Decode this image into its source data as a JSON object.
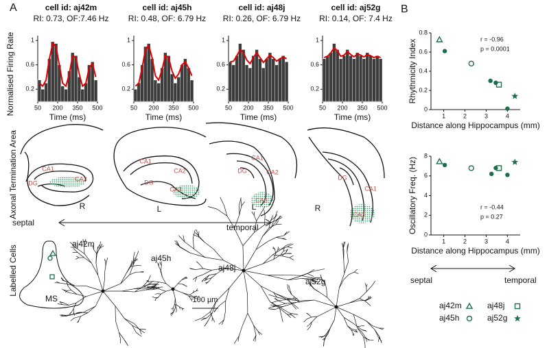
{
  "panel_labels": [
    "A",
    "B"
  ],
  "chart_data": [
    {
      "type": "histogram",
      "title": "cell id: aj42m",
      "subtitle": "RI: 0.73, OF:7.46 Hz",
      "xlabel": "Time (ms)",
      "ylabel": "Normalised Firing Rate",
      "bins": [
        50,
        75,
        100,
        125,
        150,
        175,
        200,
        225,
        250,
        275,
        300,
        325,
        350,
        375,
        400,
        425,
        450,
        475,
        500
      ],
      "values": [
        0.35,
        0.2,
        0.3,
        0.7,
        0.98,
        0.95,
        0.6,
        0.25,
        0.2,
        0.5,
        0.8,
        0.75,
        0.4,
        0.2,
        0.3,
        0.6,
        0.65,
        0.35
      ],
      "color": "#3c3c3c",
      "fit": {
        "x": [
          62.5,
          87.5,
          112.5,
          137.5,
          162.5,
          187.5,
          212.5,
          237.5,
          262.5,
          287.5,
          312.5,
          337.5,
          362.5,
          387.5,
          412.5,
          437.5,
          462.5,
          487.5
        ],
        "values": [
          0.3,
          0.25,
          0.35,
          0.7,
          0.95,
          0.9,
          0.6,
          0.3,
          0.25,
          0.45,
          0.75,
          0.72,
          0.45,
          0.25,
          0.3,
          0.55,
          0.62,
          0.4
        ],
        "color": "#e00000"
      },
      "xlim": [
        50,
        500
      ],
      "xticks": [
        50,
        200,
        350,
        500
      ],
      "ylim": [
        0,
        1.08
      ],
      "yticks": [
        0.2,
        0.6,
        1
      ]
    },
    {
      "type": "histogram",
      "title": "cell id: aj45h",
      "subtitle": "RI: 0.48, OF: 6.79 Hz",
      "xlabel": "Time (ms)",
      "bins": [
        50,
        75,
        100,
        125,
        150,
        175,
        200,
        225,
        250,
        275,
        300,
        325,
        350,
        375,
        400,
        425,
        450,
        475,
        500
      ],
      "values": [
        0.2,
        0.3,
        0.6,
        0.9,
        0.95,
        0.7,
        0.35,
        0.3,
        0.55,
        0.8,
        0.75,
        0.45,
        0.3,
        0.4,
        0.6,
        0.7,
        0.55,
        0.35
      ],
      "color": "#3c3c3c",
      "fit": {
        "x": [
          62.5,
          87.5,
          112.5,
          137.5,
          162.5,
          187.5,
          212.5,
          237.5,
          262.5,
          287.5,
          312.5,
          337.5,
          362.5,
          387.5,
          412.5,
          437.5,
          462.5,
          487.5
        ],
        "values": [
          0.25,
          0.3,
          0.55,
          0.85,
          0.92,
          0.72,
          0.42,
          0.35,
          0.52,
          0.75,
          0.72,
          0.5,
          0.38,
          0.45,
          0.6,
          0.65,
          0.55,
          0.42
        ],
        "color": "#e00000"
      },
      "xlim": [
        50,
        500
      ],
      "xticks": [
        50,
        200,
        350,
        500
      ],
      "ylim": [
        0,
        1.08
      ],
      "yticks": [
        0.2,
        0.6,
        1
      ]
    },
    {
      "type": "histogram",
      "title": "cell id: aj48j",
      "subtitle": "RI: 0.26, OF: 6.79 Hz",
      "xlabel": "Time (ms)",
      "bins": [
        50,
        75,
        100,
        125,
        150,
        175,
        200,
        225,
        250,
        275,
        300,
        325,
        350,
        375,
        400,
        425,
        450,
        475,
        500
      ],
      "values": [
        0.65,
        0.6,
        0.75,
        0.95,
        0.85,
        0.6,
        0.55,
        0.75,
        0.85,
        0.7,
        0.55,
        0.7,
        0.8,
        0.7,
        0.6,
        0.7,
        0.75,
        0.65
      ],
      "color": "#3c3c3c",
      "fit": {
        "x": [
          62.5,
          87.5,
          112.5,
          137.5,
          162.5,
          187.5,
          212.5,
          237.5,
          262.5,
          287.5,
          312.5,
          337.5,
          362.5,
          387.5,
          412.5,
          437.5,
          462.5,
          487.5
        ],
        "values": [
          0.65,
          0.66,
          0.75,
          0.85,
          0.8,
          0.68,
          0.62,
          0.72,
          0.8,
          0.72,
          0.64,
          0.7,
          0.76,
          0.72,
          0.66,
          0.7,
          0.73,
          0.7
        ],
        "color": "#e00000"
      },
      "xlim": [
        50,
        500
      ],
      "xticks": [
        50,
        200,
        350,
        500
      ],
      "ylim": [
        0,
        1.08
      ],
      "yticks": [
        0.2,
        0.6,
        1
      ]
    },
    {
      "type": "histogram",
      "title": "cell id: aj52g",
      "subtitle": "RI: 0.14, OF: 7.4 Hz",
      "xlabel": "Time (ms)",
      "bins": [
        50,
        75,
        100,
        125,
        150,
        175,
        200,
        225,
        250,
        275,
        300,
        325,
        350,
        375,
        400,
        425,
        450,
        475,
        500
      ],
      "values": [
        0.7,
        0.75,
        0.8,
        0.95,
        0.85,
        0.7,
        0.75,
        0.85,
        0.75,
        0.7,
        0.8,
        0.75,
        0.7,
        0.8,
        0.75,
        0.7,
        0.75,
        0.7
      ],
      "color": "#3c3c3c",
      "fit": {
        "x": [
          62.5,
          87.5,
          112.5,
          137.5,
          162.5,
          187.5,
          212.5,
          237.5,
          262.5,
          287.5,
          312.5,
          337.5,
          362.5,
          387.5,
          412.5,
          437.5,
          462.5,
          487.5
        ],
        "values": [
          0.72,
          0.74,
          0.8,
          0.88,
          0.83,
          0.74,
          0.76,
          0.82,
          0.77,
          0.73,
          0.78,
          0.76,
          0.73,
          0.77,
          0.75,
          0.72,
          0.74,
          0.72
        ],
        "color": "#e00000"
      },
      "xlim": [
        50,
        500
      ],
      "xticks": [
        50,
        200,
        350,
        500
      ],
      "ylim": [
        0,
        1.08
      ],
      "yticks": [
        0.2,
        0.6,
        1
      ]
    },
    {
      "type": "scatter",
      "xlabel": "Distance along Hippocampus (mm)",
      "ylabel": "Rhythmicity Index",
      "annotations": [
        "r = -0.96",
        "p = 0.0001"
      ],
      "xlim": [
        0.4,
        4.6
      ],
      "xticks": [
        1,
        2,
        3,
        4
      ],
      "ylim": [
        0,
        0.8
      ],
      "yticks": [
        0,
        0.2,
        0.4,
        0.6,
        0.8
      ],
      "series": [
        {
          "name": "aj42m",
          "marker": "triangle",
          "color": "#1b6e4a",
          "x": [
            0.8
          ],
          "y": [
            0.73
          ]
        },
        {
          "name": "aj45h",
          "marker": "circle",
          "color": "#1b6e4a",
          "x": [
            2.3
          ],
          "y": [
            0.48
          ]
        },
        {
          "name": "aj48j",
          "marker": "square",
          "color": "#1b6e4a",
          "x": [
            3.6
          ],
          "y": [
            0.26
          ]
        },
        {
          "name": "aj52g",
          "marker": "star",
          "color": "#1b6e4a",
          "x": [
            4.35
          ],
          "y": [
            0.14
          ]
        },
        {
          "marker": "dot",
          "color": "#1b6e4a",
          "x": [
            1.05,
            3.2,
            3.45,
            4.0
          ],
          "y": [
            0.61,
            0.3,
            0.28,
            0.01
          ]
        }
      ]
    },
    {
      "type": "scatter",
      "xlabel": "Distance along Hippocampus (mm)",
      "ylabel": "Oscillatory Freq. (Hz)",
      "annotations": [
        "r = -0.44",
        "p = 0.27"
      ],
      "xlim": [
        0.4,
        4.6
      ],
      "xticks": [
        1,
        2,
        3,
        4
      ],
      "ylim": [
        0,
        8
      ],
      "yticks": [
        0,
        2,
        4,
        6,
        8
      ],
      "series": [
        {
          "marker": "triangle",
          "color": "#1b6e4a",
          "x": [
            0.8
          ],
          "y": [
            7.46
          ]
        },
        {
          "marker": "circle",
          "color": "#1b6e4a",
          "x": [
            2.3
          ],
          "y": [
            6.79
          ]
        },
        {
          "marker": "square",
          "color": "#1b6e4a",
          "x": [
            3.6
          ],
          "y": [
            6.79
          ]
        },
        {
          "marker": "star",
          "color": "#1b6e4a",
          "x": [
            4.35
          ],
          "y": [
            7.4
          ]
        },
        {
          "marker": "dot",
          "color": "#1b6e4a",
          "x": [
            1.05,
            3.25,
            3.45,
            4.0
          ],
          "y": [
            7.1,
            6.2,
            6.8,
            6.1
          ]
        }
      ]
    }
  ],
  "axonal_label": "Axonal Termination Area",
  "sections": [
    {
      "labels": [
        "CA1",
        "DG",
        "CA3"
      ],
      "side": "R"
    },
    {
      "labels": [
        "CA1",
        "CA2",
        "DG",
        "CA3"
      ],
      "side": "L"
    },
    {
      "labels": [
        "CA1",
        "DG",
        "CA2",
        "CA3"
      ],
      "side": "L"
    },
    {
      "labels": [
        "DG",
        "CA1",
        "CA3"
      ],
      "side": "R"
    }
  ],
  "axis_arrow": {
    "left": "septal",
    "right": "temporal"
  },
  "labelled_label": "Labelled Cells",
  "ms": "MS",
  "cells": [
    "aj42m",
    "aj45h",
    "aj48j",
    "aj52g"
  ],
  "scale_bar": "100 µm",
  "b_arrow": {
    "left": "septal",
    "right": "temporal"
  }
}
